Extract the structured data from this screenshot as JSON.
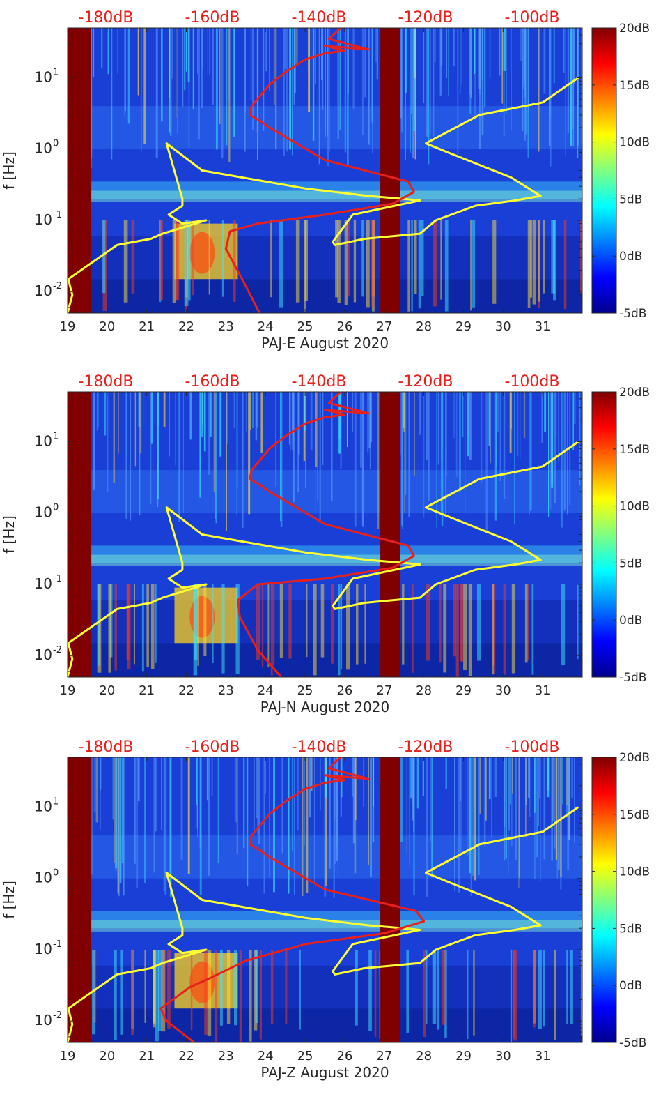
{
  "chart_data": [
    {
      "type": "heatmap",
      "panel": "PAJ-E",
      "xlabel": "PAJ-E August 2020",
      "ylabel": "f [Hz]",
      "xlim": [
        19,
        32
      ],
      "ylim": [
        0.005,
        50
      ],
      "yscale": "log",
      "x_ticks": [
        "19",
        "20",
        "21",
        "22",
        "23",
        "24",
        "25",
        "26",
        "27",
        "28",
        "29",
        "30",
        "31"
      ],
      "top_axis_ticks": [
        "-180dB",
        "-160dB",
        "-140dB",
        "-120dB",
        "-100dB"
      ],
      "colorbar": {
        "min": -5,
        "max": 20,
        "unit": "dB",
        "tick_labels": [
          "20dB",
          "15dB",
          "10dB",
          "5dB",
          "0dB",
          "-5dB"
        ]
      },
      "gaps": [
        [
          19.0,
          19.6
        ],
        [
          26.9,
          27.4
        ]
      ],
      "series": [
        {
          "color": "#ffff33",
          "x": [
            19.0,
            19.12,
            19.02,
            20.25,
            21.1,
            21.4,
            22.5,
            21.9,
            21.55,
            21.9,
            21.9,
            21.5,
            22.4,
            25.0,
            26.6,
            27.5,
            27.9,
            26.2,
            25.7,
            25.75,
            26.5,
            27.9,
            28.3,
            29.3,
            30.3,
            30.95,
            30.2,
            28.6,
            28.05,
            29.4,
            31.0,
            31.9
          ],
          "y": [
            0.005,
            0.009,
            0.015,
            0.045,
            0.055,
            0.065,
            0.1,
            0.09,
            0.12,
            0.16,
            0.2,
            1.2,
            0.5,
            0.28,
            0.22,
            0.2,
            0.19,
            0.12,
            0.05,
            0.045,
            0.055,
            0.065,
            0.1,
            0.16,
            0.19,
            0.22,
            0.4,
            0.9,
            1.2,
            3,
            4.5,
            10
          ]
        },
        {
          "color": "#e8201c",
          "x": [
            23.85,
            23.5,
            23.0,
            23.1,
            23.8,
            25.5,
            27.2,
            27.75,
            27.6,
            25.5,
            24.1,
            23.85,
            23.6,
            23.65,
            24.1,
            24.5,
            25.0,
            25.5,
            26.0,
            25.5,
            26.6,
            25.6,
            25.9
          ],
          "y": [
            0.005,
            0.012,
            0.04,
            0.07,
            0.09,
            0.12,
            0.17,
            0.25,
            0.35,
            0.7,
            2,
            2.5,
            3,
            4,
            8,
            12,
            18,
            22,
            24,
            28,
            25,
            35,
            50
          ]
        }
      ]
    },
    {
      "type": "heatmap",
      "panel": "PAJ-N",
      "xlabel": "PAJ-N August 2020",
      "ylabel": "f [Hz]",
      "xlim": [
        19,
        32
      ],
      "ylim": [
        0.005,
        50
      ],
      "yscale": "log",
      "x_ticks": [
        "19",
        "20",
        "21",
        "22",
        "23",
        "24",
        "25",
        "26",
        "27",
        "28",
        "29",
        "30",
        "31"
      ],
      "top_axis_ticks": [
        "-180dB",
        "-160dB",
        "-140dB",
        "-120dB",
        "-100dB"
      ],
      "colorbar": {
        "min": -5,
        "max": 20,
        "unit": "dB",
        "tick_labels": [
          "20dB",
          "15dB",
          "10dB",
          "5dB",
          "0dB",
          "-5dB"
        ]
      },
      "gaps": [
        [
          19.0,
          19.6
        ],
        [
          26.9,
          27.4
        ]
      ],
      "series": [
        {
          "color": "#ffff33",
          "x": [
            19.0,
            19.12,
            19.02,
            20.25,
            21.1,
            21.4,
            22.5,
            21.9,
            21.55,
            21.9,
            21.9,
            21.5,
            22.4,
            25.0,
            26.6,
            27.5,
            27.9,
            26.2,
            25.7,
            25.75,
            26.5,
            27.9,
            28.3,
            29.3,
            30.3,
            30.95,
            30.2,
            28.6,
            28.05,
            29.4,
            31.0,
            31.9
          ],
          "y": [
            0.005,
            0.009,
            0.015,
            0.045,
            0.055,
            0.065,
            0.1,
            0.09,
            0.12,
            0.16,
            0.2,
            1.2,
            0.5,
            0.28,
            0.22,
            0.2,
            0.19,
            0.12,
            0.05,
            0.045,
            0.055,
            0.065,
            0.1,
            0.16,
            0.19,
            0.22,
            0.4,
            0.9,
            1.2,
            3,
            4.5,
            10
          ]
        },
        {
          "color": "#e8201c",
          "x": [
            24.4,
            23.8,
            23.35,
            23.3,
            23.8,
            25.5,
            27.2,
            27.75,
            27.6,
            25.5,
            24.1,
            23.85,
            23.6,
            23.65,
            24.1,
            24.5,
            25.0,
            25.5,
            26.0,
            25.5,
            26.6,
            25.6,
            25.9
          ],
          "y": [
            0.005,
            0.012,
            0.035,
            0.06,
            0.1,
            0.12,
            0.17,
            0.25,
            0.35,
            0.7,
            2,
            2.5,
            3,
            4,
            8,
            12,
            18,
            22,
            24,
            28,
            25,
            35,
            50
          ]
        }
      ]
    },
    {
      "type": "heatmap",
      "panel": "PAJ-Z",
      "xlabel": "PAJ-Z August 2020",
      "ylabel": "f [Hz]",
      "xlim": [
        19,
        32
      ],
      "ylim": [
        0.005,
        50
      ],
      "yscale": "log",
      "x_ticks": [
        "19",
        "20",
        "21",
        "22",
        "23",
        "24",
        "25",
        "26",
        "27",
        "28",
        "29",
        "30",
        "31"
      ],
      "top_axis_ticks": [
        "-180dB",
        "-160dB",
        "-140dB",
        "-120dB",
        "-100dB"
      ],
      "colorbar": {
        "min": -5,
        "max": 20,
        "unit": "dB",
        "tick_labels": [
          "20dB",
          "15dB",
          "10dB",
          "5dB",
          "0dB",
          "-5dB"
        ]
      },
      "gaps": [
        [
          19.0,
          19.6
        ],
        [
          26.9,
          27.4
        ]
      ],
      "series": [
        {
          "color": "#ffff33",
          "x": [
            19.0,
            19.12,
            19.02,
            20.25,
            21.1,
            21.4,
            22.5,
            21.9,
            21.55,
            21.9,
            21.9,
            21.5,
            22.4,
            25.0,
            26.6,
            27.5,
            27.9,
            26.2,
            25.7,
            25.75,
            26.5,
            27.9,
            28.3,
            29.3,
            30.3,
            30.95,
            30.2,
            28.6,
            28.05,
            29.4,
            31.0,
            31.9
          ],
          "y": [
            0.005,
            0.009,
            0.015,
            0.045,
            0.055,
            0.065,
            0.1,
            0.09,
            0.12,
            0.16,
            0.2,
            1.2,
            0.5,
            0.28,
            0.22,
            0.2,
            0.19,
            0.12,
            0.05,
            0.045,
            0.055,
            0.065,
            0.1,
            0.16,
            0.19,
            0.22,
            0.4,
            0.9,
            1.2,
            3,
            4.5,
            10
          ]
        },
        {
          "color": "#e8201c",
          "x": [
            22.2,
            21.5,
            21.35,
            22.1,
            22.6,
            23.5,
            25.0,
            27.0,
            28.0,
            27.8,
            25.5,
            24.1,
            23.85,
            23.6,
            23.65,
            24.1,
            24.5,
            25.0,
            25.5,
            26.0,
            25.5,
            26.6,
            25.6,
            25.9
          ],
          "y": [
            0.005,
            0.01,
            0.015,
            0.03,
            0.04,
            0.07,
            0.12,
            0.17,
            0.25,
            0.35,
            0.7,
            2,
            2.5,
            3,
            4,
            8,
            12,
            18,
            22,
            24,
            28,
            25,
            35,
            50
          ]
        }
      ]
    }
  ]
}
